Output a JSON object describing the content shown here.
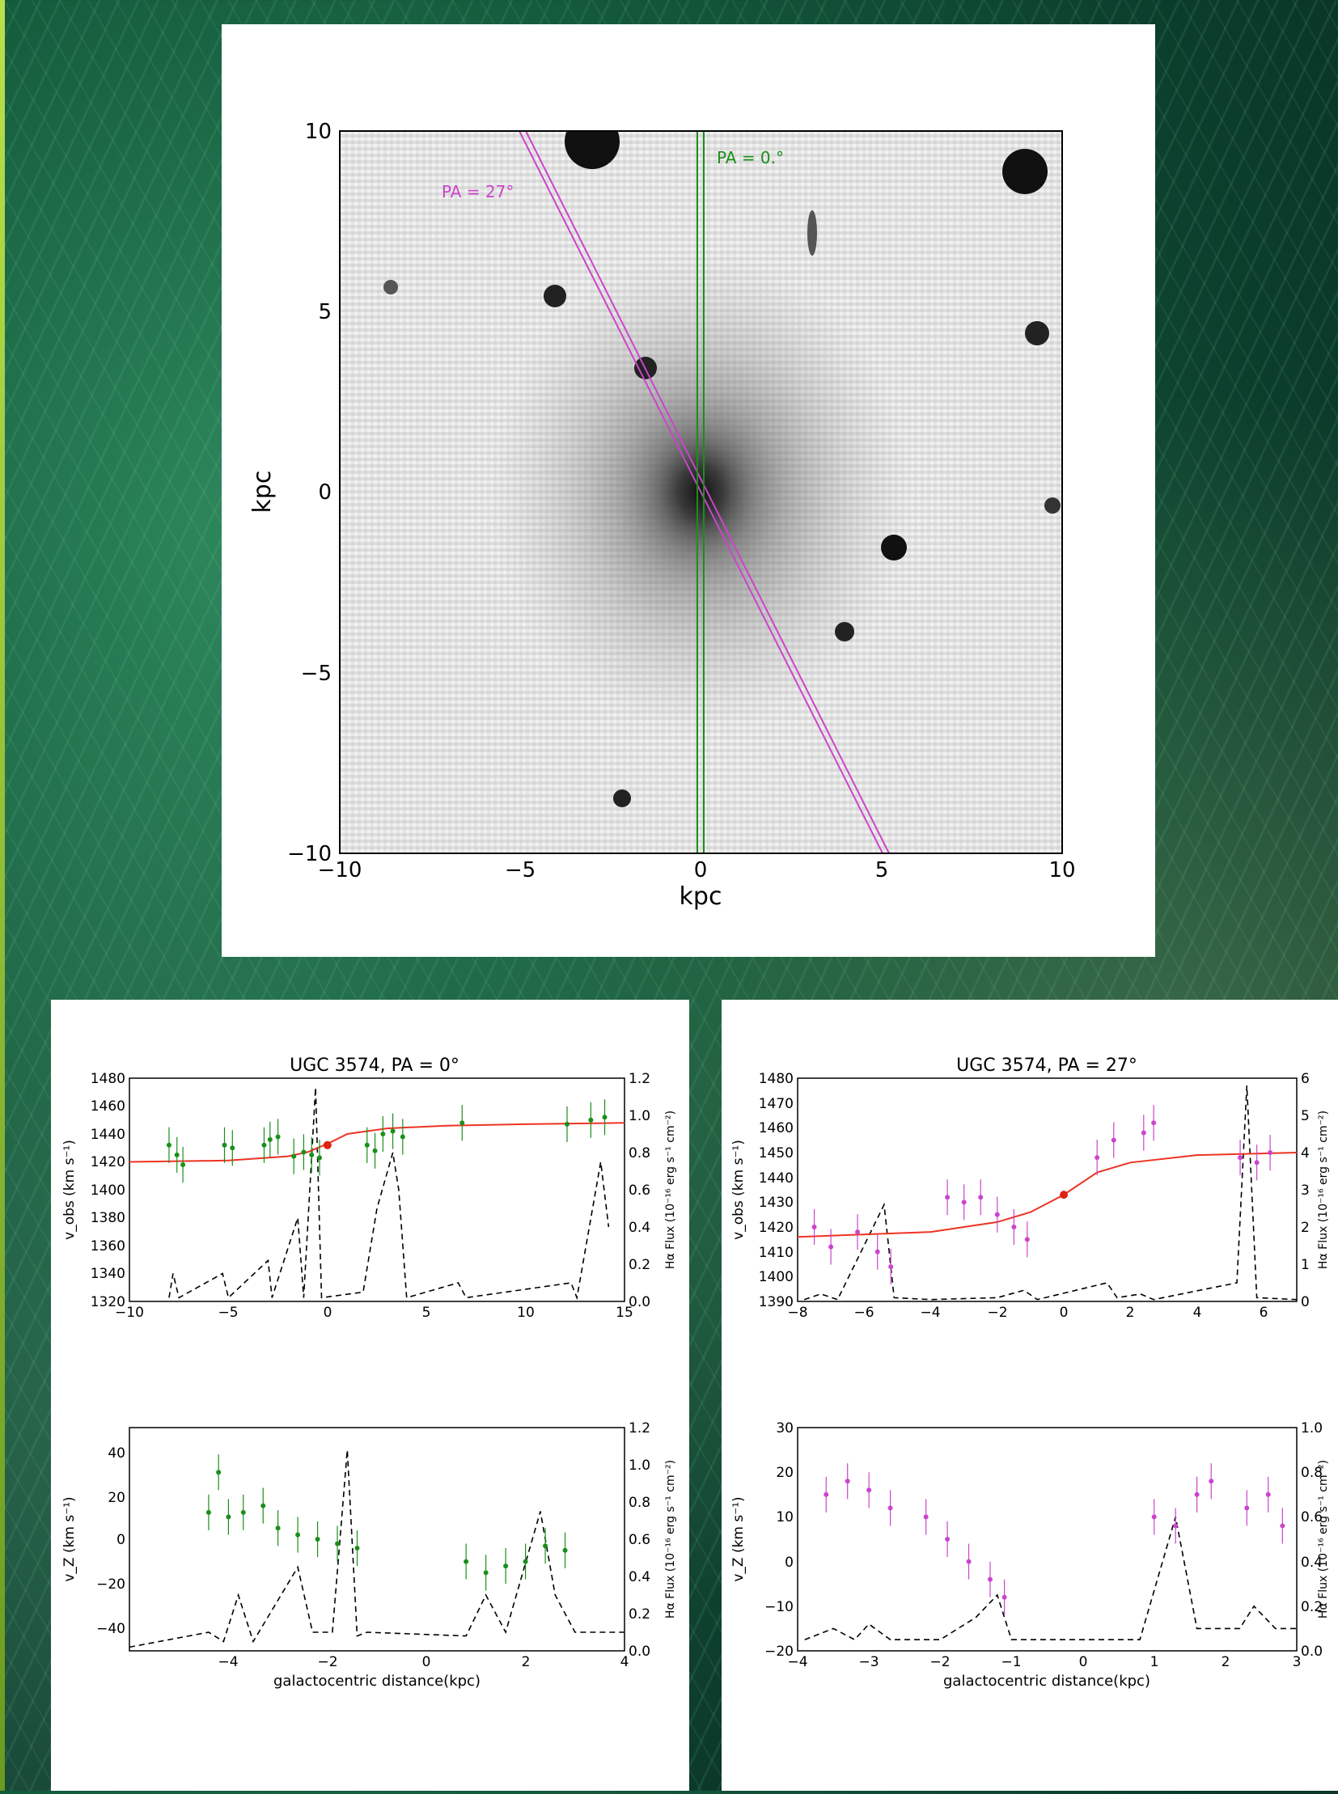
{
  "image": {
    "x_label": "kpc",
    "y_label": "kpc",
    "x_ticks": [
      "−10",
      "−5",
      "0",
      "5",
      "10"
    ],
    "y_ticks": [
      "10",
      "5",
      "0",
      "−5",
      "−10"
    ],
    "slit_pa27_label": "PA = 27°",
    "slit_pa0_label": "PA = 0.°",
    "colors": {
      "pa0": "#1a8f1a",
      "pa27": "#cc44cc"
    }
  },
  "left_panel": {
    "title": "UGC 3574, PA = 0°",
    "top_ylabel": "v_obs (km s⁻¹)",
    "top_y_ticks": [
      "1480",
      "1460",
      "1440",
      "1420",
      "1400",
      "1380",
      "1360",
      "1340",
      "1320"
    ],
    "top_x_ticks": [
      "−10",
      "−5",
      "0",
      "5",
      "10",
      "15"
    ],
    "top_right_ticks": [
      "1.2",
      "1.0",
      "0.8",
      "0.6",
      "0.4",
      "0.2",
      "0.0"
    ],
    "right_ylabel": "Hα Flux (10⁻¹⁶ erg s⁻¹ cm⁻²)",
    "bottom_ylabel": "v_Z (km s⁻¹)",
    "bottom_y_ticks": [
      "40",
      "20",
      "0",
      "−20",
      "−40"
    ],
    "bottom_x_ticks": [
      "−4",
      "−2",
      "0",
      "2",
      "4"
    ],
    "bottom_right_ticks": [
      "1.2",
      "1.0",
      "0.8",
      "0.6",
      "0.4",
      "0.2",
      "0.0"
    ],
    "xlabel": "galactocentric distance(kpc)"
  },
  "right_panel": {
    "title": "UGC 3574, PA = 27°",
    "top_ylabel": "v_obs (km s⁻¹)",
    "top_y_ticks": [
      "1480",
      "1470",
      "1460",
      "1450",
      "1440",
      "1430",
      "1420",
      "1410",
      "1400",
      "1390"
    ],
    "top_x_ticks": [
      "−8",
      "−6",
      "−4",
      "−2",
      "0",
      "2",
      "4",
      "6"
    ],
    "top_right_ticks": [
      "6",
      "5",
      "4",
      "3",
      "2",
      "1",
      "0"
    ],
    "right_ylabel": "Hα Flux (10⁻¹⁶ erg s⁻¹ cm⁻²)",
    "bottom_ylabel": "v_Z (km s⁻¹)",
    "bottom_y_ticks": [
      "30",
      "20",
      "10",
      "0",
      "−10",
      "−20"
    ],
    "bottom_x_ticks": [
      "−4",
      "−3",
      "−2",
      "−1",
      "0",
      "1",
      "2",
      "3"
    ],
    "bottom_right_ticks": [
      "1.0",
      "0.8",
      "0.6",
      "0.4",
      "0.2",
      "0.0"
    ],
    "xlabel": "galactocentric distance(kpc)"
  },
  "chart_data": [
    {
      "type": "scatter",
      "title": "UGC 3574, PA = 0°",
      "xlabel": "",
      "ylabel": "v_obs (km s⁻¹)",
      "xlim": [
        -10,
        15
      ],
      "ylim": [
        1320,
        1480
      ],
      "y2label": "Hα Flux (10⁻¹⁶ erg s⁻¹ cm⁻²)",
      "y2lim": [
        0,
        1.2
      ],
      "series": [],
      "model_curve": [
        [
          -10,
          1420
        ],
        [
          -5,
          1421
        ],
        [
          -2,
          1424
        ],
        [
          -1,
          1427
        ],
        [
          0,
          1433
        ],
        [
          1,
          1440
        ],
        [
          3,
          1444
        ],
        [
          6,
          1446
        ],
        [
          10,
          1447
        ],
        [
          15,
          1448
        ]
      ],
      "center_point": [
        0,
        1432
      ],
      "points": [
        [
          -8,
          1432
        ],
        [
          -7.6,
          1425
        ],
        [
          -7.3,
          1418
        ],
        [
          -5.2,
          1432
        ],
        [
          -4.8,
          1430
        ],
        [
          -3.2,
          1432
        ],
        [
          -2.9,
          1436
        ],
        [
          -2.5,
          1438
        ],
        [
          -1.7,
          1424
        ],
        [
          -1.2,
          1427
        ],
        [
          -0.8,
          1425
        ],
        [
          -0.4,
          1423
        ],
        [
          2,
          1432
        ],
        [
          2.4,
          1428
        ],
        [
          2.8,
          1440
        ],
        [
          3.3,
          1442
        ],
        [
          3.8,
          1438
        ],
        [
          6.8,
          1448
        ],
        [
          12.1,
          1447
        ],
        [
          13.3,
          1450
        ],
        [
          14,
          1452
        ]
      ],
      "halpha_flux": [
        [
          -8,
          0.02
        ],
        [
          -7.8,
          0.15
        ],
        [
          -7.5,
          0.02
        ],
        [
          -5.3,
          0.15
        ],
        [
          -5,
          0.02
        ],
        [
          -3,
          0.22
        ],
        [
          -2.8,
          0.02
        ],
        [
          -1.5,
          0.45
        ],
        [
          -1.2,
          0.02
        ],
        [
          -0.6,
          1.15
        ],
        [
          -0.3,
          0.02
        ],
        [
          1.8,
          0.05
        ],
        [
          2.5,
          0.5
        ],
        [
          3.3,
          0.8
        ],
        [
          3.6,
          0.6
        ],
        [
          4,
          0.02
        ],
        [
          6.6,
          0.1
        ],
        [
          7,
          0.02
        ],
        [
          12.3,
          0.1
        ],
        [
          12.6,
          0.02
        ],
        [
          13.8,
          0.75
        ],
        [
          14.2,
          0.4
        ]
      ]
    },
    {
      "type": "scatter",
      "title": "",
      "xlabel": "galactocentric distance(kpc)",
      "ylabel": "v_Z (km s⁻¹)",
      "xlim": [
        -5,
        5
      ],
      "ylim": [
        -50,
        50
      ],
      "y2label": "Hα Flux (10⁻¹⁶ erg s⁻¹ cm⁻²)",
      "y2lim": [
        0,
        1.2
      ],
      "series": [],
      "points": [
        [
          -3.4,
          12
        ],
        [
          -3.2,
          30
        ],
        [
          -3,
          10
        ],
        [
          -2.7,
          12
        ],
        [
          -2.3,
          15
        ],
        [
          -2,
          5
        ],
        [
          -1.6,
          2
        ],
        [
          -1.2,
          0
        ],
        [
          -0.8,
          -2
        ],
        [
          -0.4,
          -4
        ],
        [
          1.8,
          -10
        ],
        [
          2.2,
          -15
        ],
        [
          2.6,
          -12
        ],
        [
          3,
          -10
        ],
        [
          3.4,
          -3
        ],
        [
          3.8,
          -5
        ]
      ],
      "halpha_flux": [
        [
          -5,
          0.02
        ],
        [
          -3.4,
          0.1
        ],
        [
          -3.1,
          0.05
        ],
        [
          -2.8,
          0.3
        ],
        [
          -2.5,
          0.05
        ],
        [
          -1.6,
          0.45
        ],
        [
          -1.3,
          0.1
        ],
        [
          -0.9,
          0.1
        ],
        [
          -0.6,
          1.08
        ],
        [
          -0.4,
          0.08
        ],
        [
          -0.2,
          0.1
        ],
        [
          1.8,
          0.08
        ],
        [
          2.2,
          0.3
        ],
        [
          2.6,
          0.1
        ],
        [
          3.3,
          0.75
        ],
        [
          3.6,
          0.3
        ],
        [
          4,
          0.1
        ],
        [
          5,
          0.1
        ]
      ]
    },
    {
      "type": "scatter",
      "title": "UGC 3574, PA = 27°",
      "xlabel": "",
      "ylabel": "v_obs (km s⁻¹)",
      "xlim": [
        -8,
        7
      ],
      "ylim": [
        1390,
        1480
      ],
      "y2label": "Hα Flux (10⁻¹⁶ erg s⁻¹ cm⁻²)",
      "y2lim": [
        0,
        6
      ],
      "series": [],
      "model_curve": [
        [
          -8,
          1416
        ],
        [
          -4,
          1418
        ],
        [
          -2,
          1422
        ],
        [
          -1,
          1426
        ],
        [
          0,
          1433
        ],
        [
          1,
          1442
        ],
        [
          2,
          1446
        ],
        [
          4,
          1449
        ],
        [
          7,
          1450
        ]
      ],
      "center_point": [
        0,
        1433
      ],
      "points": [
        [
          -7.5,
          1420
        ],
        [
          -7,
          1412
        ],
        [
          -6.2,
          1418
        ],
        [
          -5.6,
          1410
        ],
        [
          -5.2,
          1404
        ],
        [
          -3.5,
          1432
        ],
        [
          -3,
          1430
        ],
        [
          -2.5,
          1432
        ],
        [
          -2,
          1425
        ],
        [
          -1.5,
          1420
        ],
        [
          -1.1,
          1415
        ],
        [
          1,
          1448
        ],
        [
          1.5,
          1455
        ],
        [
          2.4,
          1458
        ],
        [
          2.7,
          1462
        ],
        [
          5.3,
          1448
        ],
        [
          5.8,
          1446
        ],
        [
          6.2,
          1450
        ]
      ],
      "halpha_flux": [
        [
          -7.8,
          0.05
        ],
        [
          -7.3,
          0.2
        ],
        [
          -6.8,
          0.05
        ],
        [
          -5.4,
          2.6
        ],
        [
          -5.1,
          0.1
        ],
        [
          -4,
          0.05
        ],
        [
          -2,
          0.1
        ],
        [
          -1.2,
          0.3
        ],
        [
          -0.8,
          0.05
        ],
        [
          1.3,
          0.5
        ],
        [
          1.6,
          0.1
        ],
        [
          2.3,
          0.2
        ],
        [
          2.7,
          0.05
        ],
        [
          5.2,
          0.5
        ],
        [
          5.5,
          5.8
        ],
        [
          5.8,
          0.1
        ],
        [
          7,
          0.05
        ]
      ]
    },
    {
      "type": "scatter",
      "title": "",
      "xlabel": "galactocentric distance(kpc)",
      "ylabel": "v_Z (km s⁻¹)",
      "xlim": [
        -4,
        3
      ],
      "ylim": [
        -20,
        30
      ],
      "y2label": "Hα Flux (10⁻¹⁶ erg s⁻¹ cm⁻²)",
      "y2lim": [
        0,
        1.0
      ],
      "series": [],
      "points": [
        [
          -3.6,
          15
        ],
        [
          -3.3,
          18
        ],
        [
          -3,
          16
        ],
        [
          -2.7,
          12
        ],
        [
          -2.2,
          10
        ],
        [
          -1.9,
          5
        ],
        [
          -1.6,
          0
        ],
        [
          -1.3,
          -4
        ],
        [
          -1.1,
          -8
        ],
        [
          1,
          10
        ],
        [
          1.3,
          8
        ],
        [
          1.6,
          15
        ],
        [
          1.8,
          18
        ],
        [
          2.3,
          12
        ],
        [
          2.6,
          15
        ],
        [
          2.8,
          8
        ]
      ],
      "halpha_flux": [
        [
          -3.9,
          0.05
        ],
        [
          -3.5,
          0.1
        ],
        [
          -3.2,
          0.05
        ],
        [
          -3,
          0.12
        ],
        [
          -2.7,
          0.05
        ],
        [
          -2,
          0.05
        ],
        [
          -1.5,
          0.15
        ],
        [
          -1.2,
          0.25
        ],
        [
          -1,
          0.05
        ],
        [
          0.8,
          0.05
        ],
        [
          1.3,
          0.6
        ],
        [
          1.6,
          0.1
        ],
        [
          2.2,
          0.1
        ],
        [
          2.4,
          0.2
        ],
        [
          2.7,
          0.1
        ],
        [
          3,
          0.1
        ]
      ]
    }
  ]
}
